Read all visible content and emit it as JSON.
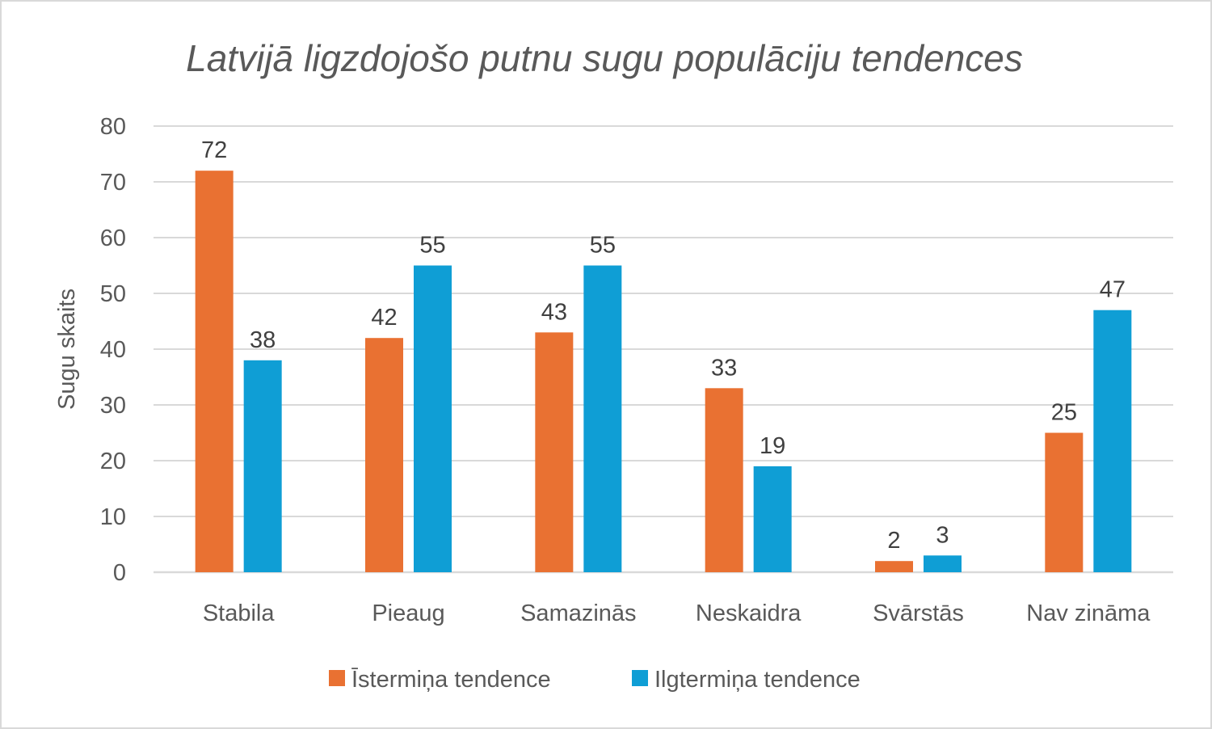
{
  "chart_data": {
    "type": "bar",
    "title": "Latvijā ligzdojošo putnu sugu populāciju tendences",
    "xlabel": "",
    "ylabel": "Sugu skaits",
    "ylim": [
      0,
      80
    ],
    "yticks": [
      0,
      10,
      20,
      30,
      40,
      50,
      60,
      70,
      80
    ],
    "grid": true,
    "legend_position": "bottom",
    "categories": [
      "Stabila",
      "Pieaug",
      "Samazinās",
      "Neskaidra",
      "Svārstās",
      "Nav zināma"
    ],
    "series": [
      {
        "name": "Īstermiņa tendence",
        "color": "#E97132",
        "values": [
          72,
          42,
          43,
          33,
          2,
          25
        ]
      },
      {
        "name": "Ilgtermiņa tendence",
        "color": "#0F9ED5",
        "values": [
          38,
          55,
          55,
          19,
          3,
          47
        ]
      }
    ]
  }
}
